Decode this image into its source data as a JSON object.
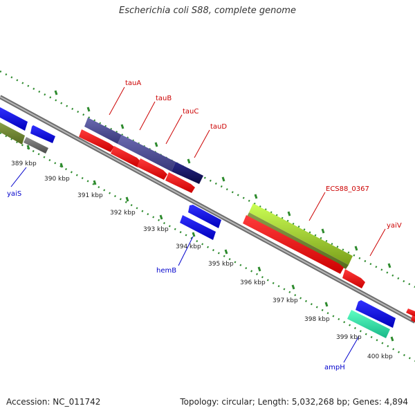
{
  "title": "Escherichia coli S88, complete genome",
  "footer": {
    "accession": "Accession: NC_011742",
    "topology": "Topology: circular; Length: 5,032,268 bp; Genes: 4,894"
  },
  "colors": {
    "backbone": "#8a8a8a",
    "top_label": "#cc0000",
    "bottom_label": "#0000cc",
    "dotted_track": "#2e8b2e"
  },
  "ruler": [
    {
      "label": "389 kbp"
    },
    {
      "label": "390 kbp"
    },
    {
      "label": "391 kbp"
    },
    {
      "label": "392 kbp"
    },
    {
      "label": "393 kbp"
    },
    {
      "label": "394 kbp"
    },
    {
      "label": "395 kbp"
    },
    {
      "label": "396 kbp"
    },
    {
      "label": "397 kbp"
    },
    {
      "label": "398 kbp"
    },
    {
      "label": "399 kbp"
    },
    {
      "label": "400 kbp"
    }
  ],
  "gene_labels_top": [
    {
      "name": "tauA"
    },
    {
      "name": "tauB"
    },
    {
      "name": "tauC"
    },
    {
      "name": "tauD"
    },
    {
      "name": "ECS88_0367"
    },
    {
      "name": "yaiV"
    }
  ],
  "gene_labels_bottom": [
    {
      "name": "yaiS"
    },
    {
      "name": "hemB"
    },
    {
      "name": "ampH"
    }
  ]
}
